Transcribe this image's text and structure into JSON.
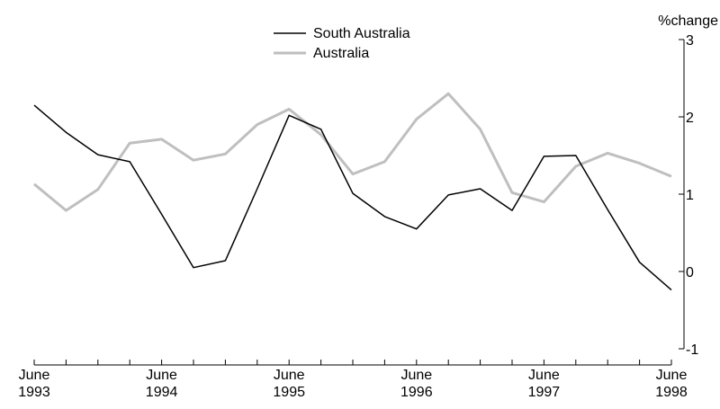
{
  "chart_data": {
    "type": "line",
    "y_label": "%change",
    "categories": [
      "June 1993",
      null,
      null,
      null,
      "June 1994",
      null,
      null,
      null,
      "June 1995",
      null,
      null,
      null,
      "June 1996",
      null,
      null,
      null,
      "June 1997",
      null,
      null,
      null,
      "June 1998"
    ],
    "series": [
      {
        "name": "South Australia",
        "color": "#000000",
        "values": [
          2.15,
          1.8,
          1.51,
          1.42,
          0.74,
          0.05,
          0.14,
          1.07,
          2.02,
          1.84,
          1.01,
          0.71,
          0.55,
          0.99,
          1.07,
          0.79,
          1.49,
          1.5,
          0.8,
          0.12,
          -0.24
        ]
      },
      {
        "name": "Australia",
        "color": "#bfbfbf",
        "values": [
          1.13,
          0.79,
          1.06,
          1.66,
          1.71,
          1.44,
          1.52,
          1.9,
          2.1,
          1.77,
          1.26,
          1.42,
          1.97,
          2.3,
          1.84,
          1.02,
          0.9,
          1.36,
          1.53,
          1.4,
          1.23
        ]
      }
    ],
    "ylim": [
      -1,
      3
    ],
    "yticks": [
      -1,
      0,
      1,
      2,
      3
    ],
    "legend": "top"
  }
}
